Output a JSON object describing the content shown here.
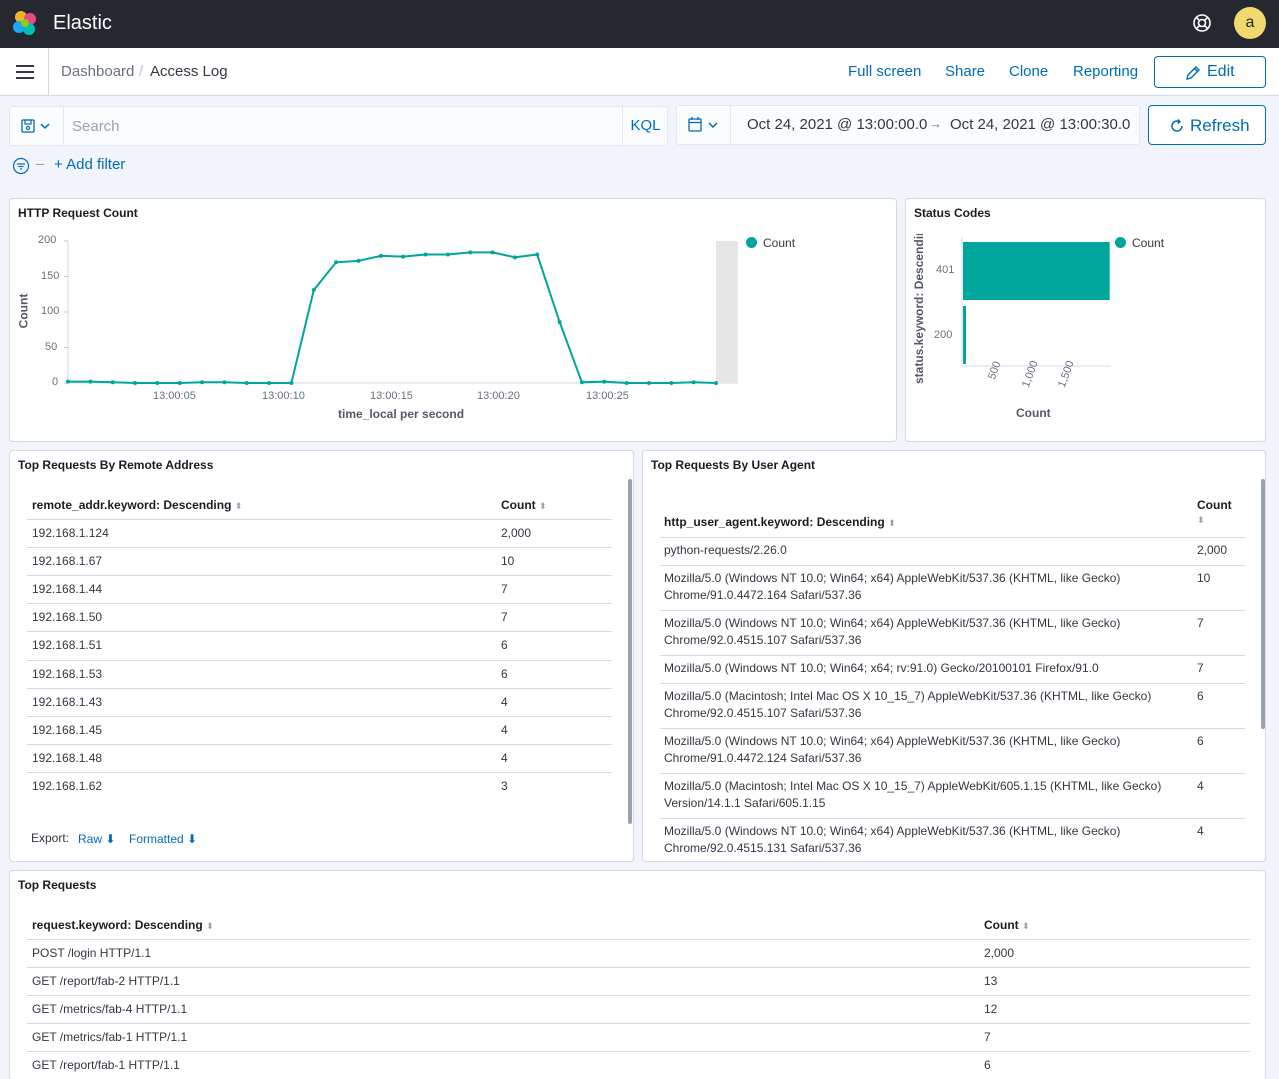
{
  "app": {
    "brand": "Elastic",
    "avatar_initial": "a"
  },
  "breadcrumb": {
    "parent": "Dashboard",
    "current": "Access Log"
  },
  "toolbar": {
    "full_screen": "Full screen",
    "share": "Share",
    "clone": "Clone",
    "reporting": "Reporting",
    "edit": "Edit"
  },
  "query": {
    "placeholder": "Search",
    "language": "KQL"
  },
  "time_range": {
    "start": "Oct 24, 2021 @ 13:00:00.0",
    "end": "Oct 24, 2021 @ 13:00:30.0",
    "refresh_label": "Refresh"
  },
  "filters": {
    "add_label": "+ Add filter"
  },
  "colors": {
    "series": "#00a69b",
    "link": "#006bb8",
    "header_bg": "#25282f"
  },
  "panels": {
    "http_count": {
      "title": "HTTP Request Count",
      "legend": "Count",
      "chart_data": {
        "type": "line",
        "title": "HTTP Request Count",
        "xlabel": "time_local per second",
        "ylabel": "Count",
        "ylim": [
          0,
          200
        ],
        "y_ticks": [
          "0",
          "50",
          "100",
          "150",
          "200"
        ],
        "x_ticks": [
          "13:00:05",
          "13:00:10",
          "13:00:15",
          "13:00:20",
          "13:00:25"
        ],
        "x": [
          0,
          1,
          2,
          3,
          4,
          5,
          6,
          7,
          8,
          9,
          10,
          11,
          12,
          13,
          14,
          15,
          16,
          17,
          18,
          19,
          20,
          21,
          22,
          23,
          24,
          25,
          26,
          27,
          28,
          29
        ],
        "series": [
          {
            "name": "Count",
            "values": [
              2,
              2,
              1,
              0,
              0,
              0,
              1,
              1,
              0,
              0,
              0,
              131,
              170,
              172,
              179,
              178,
              181,
              181,
              184,
              184,
              177,
              181,
              86,
              1,
              2,
              0,
              0,
              0,
              1,
              0
            ]
          }
        ]
      }
    },
    "status_codes": {
      "title": "Status Codes",
      "legend": "Count",
      "chart_data": {
        "type": "bar",
        "orientation": "horizontal",
        "title": "Status Codes",
        "ylabel": "status.keyword: Descending",
        "xlabel": "Count",
        "categories": [
          "401",
          "200"
        ],
        "values": [
          1930,
          20
        ],
        "x_ticks": [
          "500",
          "1,000",
          "1,500"
        ],
        "xlim": [
          0,
          2000
        ]
      }
    },
    "remote_addr": {
      "title": "Top Requests By Remote Address",
      "col_key": "remote_addr.keyword: Descending",
      "col_count": "Count",
      "rows": [
        [
          "192.168.1.124",
          "2,000"
        ],
        [
          "192.168.1.67",
          "10"
        ],
        [
          "192.168.1.44",
          "7"
        ],
        [
          "192.168.1.50",
          "7"
        ],
        [
          "192.168.1.51",
          "6"
        ],
        [
          "192.168.1.53",
          "6"
        ],
        [
          "192.168.1.43",
          "4"
        ],
        [
          "192.168.1.45",
          "4"
        ],
        [
          "192.168.1.48",
          "4"
        ],
        [
          "192.168.1.62",
          "3"
        ]
      ],
      "export_label": "Export:",
      "export_raw": "Raw",
      "export_formatted": "Formatted"
    },
    "user_agent": {
      "title": "Top Requests By User Agent",
      "col_key": "http_user_agent.keyword: Descending",
      "col_count": "Count",
      "rows": [
        [
          "python-requests/2.26.0",
          "",
          "2,000"
        ],
        [
          "Mozilla/5.0 (Windows NT 10.0; Win64; x64) AppleWebKit/537.36 (KHTML, like Gecko)",
          "Chrome/91.0.4472.164 Safari/537.36",
          "10"
        ],
        [
          "Mozilla/5.0 (Windows NT 10.0; Win64; x64) AppleWebKit/537.36 (KHTML, like Gecko)",
          "Chrome/92.0.4515.107 Safari/537.36",
          "7"
        ],
        [
          "Mozilla/5.0 (Windows NT 10.0; Win64; x64; rv:91.0) Gecko/20100101 Firefox/91.0",
          "",
          "7"
        ],
        [
          "Mozilla/5.0 (Macintosh; Intel Mac OS X 10_15_7) AppleWebKit/537.36 (KHTML, like Gecko)",
          "Chrome/92.0.4515.107 Safari/537.36",
          "6"
        ],
        [
          "Mozilla/5.0 (Windows NT 10.0; Win64; x64) AppleWebKit/537.36 (KHTML, like Gecko)",
          "Chrome/91.0.4472.124 Safari/537.36",
          "6"
        ],
        [
          "Mozilla/5.0 (Macintosh; Intel Mac OS X 10_15_7) AppleWebKit/605.1.15 (KHTML, like Gecko)",
          "Version/14.1.1 Safari/605.1.15",
          "4"
        ],
        [
          "Mozilla/5.0 (Windows NT 10.0; Win64; x64) AppleWebKit/537.36 (KHTML, like Gecko)",
          "Chrome/92.0.4515.131 Safari/537.36",
          "4"
        ]
      ]
    },
    "top_requests": {
      "title": "Top Requests",
      "col_key": "request.keyword: Descending",
      "col_count": "Count",
      "rows": [
        [
          "POST /login HTTP/1.1",
          "2,000"
        ],
        [
          "GET /report/fab-2 HTTP/1.1",
          "13"
        ],
        [
          "GET /metrics/fab-4 HTTP/1.1",
          "12"
        ],
        [
          "GET /metrics/fab-1 HTTP/1.1",
          "7"
        ],
        [
          "GET /report/fab-1 HTTP/1.1",
          "6"
        ]
      ]
    }
  }
}
